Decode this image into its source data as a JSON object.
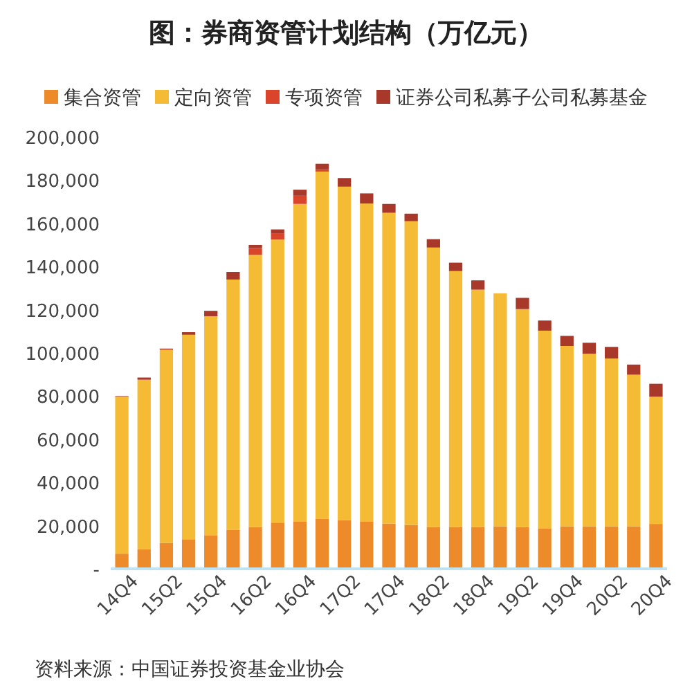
{
  "chart_data": {
    "type": "bar",
    "stacked": true,
    "title": "图：券商资管计划结构（万亿元）",
    "annotations": [
      "资料来源：中国证券投资基金业协会"
    ],
    "categories": [
      "14Q4",
      null,
      "15Q2",
      null,
      "15Q4",
      null,
      "16Q2",
      null,
      "16Q4",
      null,
      "17Q2",
      null,
      "17Q4",
      null,
      "18Q2",
      null,
      "18Q4",
      null,
      "19Q2",
      null,
      "19Q4",
      null,
      "20Q2",
      null,
      "20Q4"
    ],
    "series": [
      {
        "name": "集合资管",
        "color": "#ed8a2a",
        "values": [
          7000,
          9000,
          12000,
          13700,
          15400,
          18000,
          19300,
          21400,
          21800,
          23100,
          22500,
          21800,
          21000,
          20300,
          19300,
          19300,
          19300,
          19700,
          19300,
          18600,
          19700,
          19700,
          19700,
          19700,
          20800
        ]
      },
      {
        "name": "定向资管",
        "color": "#f6bb34",
        "values": [
          72700,
          78600,
          89500,
          94700,
          101600,
          116000,
          126100,
          131100,
          147200,
          160900,
          154500,
          147400,
          143900,
          140700,
          129500,
          118600,
          110000,
          107900,
          101000,
          91700,
          83500,
          79900,
          77700,
          70200,
          58900
        ]
      },
      {
        "name": "专项资管",
        "color": "#d9442a",
        "values": [
          0,
          0,
          0,
          0,
          0,
          0,
          3200,
          2700,
          3800,
          1000,
          0,
          0,
          0,
          0,
          0,
          0,
          0,
          0,
          0,
          0,
          0,
          0,
          0,
          0,
          0
        ]
      },
      {
        "name": "证券公司私募子公司私募基金",
        "color": "#a8392a",
        "values": [
          300,
          1000,
          500,
          1200,
          2500,
          3500,
          1400,
          2000,
          2800,
          2600,
          4000,
          4700,
          4100,
          3500,
          3900,
          3900,
          4300,
          0,
          5200,
          4700,
          4700,
          5100,
          5400,
          4700,
          6000
        ]
      }
    ],
    "ylim": [
      0,
      200000
    ],
    "yticks": [
      {
        "value": 0,
        "label": "-"
      },
      {
        "value": 20000,
        "label": "20,000"
      },
      {
        "value": 40000,
        "label": "40,000"
      },
      {
        "value": 60000,
        "label": "60,000"
      },
      {
        "value": 80000,
        "label": "80,000"
      },
      {
        "value": 100000,
        "label": "100,000"
      },
      {
        "value": 120000,
        "label": "120,000"
      },
      {
        "value": 140000,
        "label": "140,000"
      },
      {
        "value": 160000,
        "label": "160,000"
      },
      {
        "value": 180000,
        "label": "180,000"
      },
      {
        "value": 200000,
        "label": "200,000"
      }
    ],
    "grid": false,
    "legend": "top"
  }
}
